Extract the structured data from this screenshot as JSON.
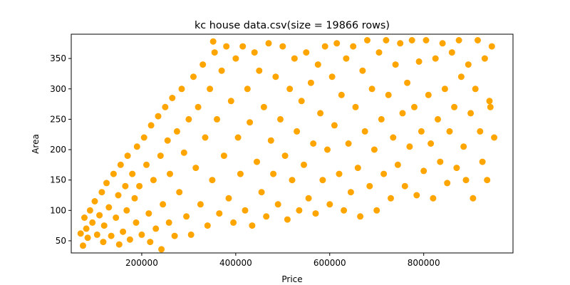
{
  "chart_data": {
    "type": "scatter",
    "title": "kc house data.csv(size = 19866 rows)",
    "xlabel": "Price",
    "ylabel": "Area",
    "xlim": [
      50000,
      990000
    ],
    "ylim": [
      30,
      390
    ],
    "xticks": [
      200000,
      400000,
      600000,
      800000
    ],
    "xtick_labels": [
      "200000",
      "400000",
      "600000",
      "800000"
    ],
    "yticks": [
      50,
      100,
      150,
      200,
      250,
      300,
      350
    ],
    "ytick_labels": [
      "50",
      "100",
      "150",
      "200",
      "250",
      "300",
      "350"
    ],
    "grid": false,
    "legend": "none",
    "marker_color": "#ffa500",
    "points": [
      [
        70000,
        62
      ],
      [
        75000,
        42
      ],
      [
        78000,
        88
      ],
      [
        82000,
        70
      ],
      [
        85000,
        55
      ],
      [
        90000,
        100
      ],
      [
        95000,
        80
      ],
      [
        100000,
        115
      ],
      [
        105000,
        60
      ],
      [
        110000,
        92
      ],
      [
        115000,
        130
      ],
      [
        118000,
        48
      ],
      [
        120000,
        75
      ],
      [
        125000,
        145
      ],
      [
        130000,
        105
      ],
      [
        135000,
        58
      ],
      [
        140000,
        160
      ],
      [
        145000,
        88
      ],
      [
        150000,
        125
      ],
      [
        152000,
        44
      ],
      [
        155000,
        175
      ],
      [
        160000,
        65
      ],
      [
        165000,
        140
      ],
      [
        168000,
        100
      ],
      [
        170000,
        190
      ],
      [
        175000,
        52
      ],
      [
        180000,
        160
      ],
      [
        185000,
        120
      ],
      [
        188000,
        80
      ],
      [
        190000,
        205
      ],
      [
        195000,
        140
      ],
      [
        200000,
        60
      ],
      [
        205000,
        220
      ],
      [
        210000,
        175
      ],
      [
        215000,
        95
      ],
      [
        218000,
        48
      ],
      [
        220000,
        240
      ],
      [
        225000,
        150
      ],
      [
        230000,
        70
      ],
      [
        235000,
        255
      ],
      [
        240000,
        190
      ],
      [
        242000,
        36
      ],
      [
        245000,
        110
      ],
      [
        250000,
        270
      ],
      [
        255000,
        215
      ],
      [
        258000,
        80
      ],
      [
        260000,
        160
      ],
      [
        265000,
        285
      ],
      [
        270000,
        58
      ],
      [
        275000,
        230
      ],
      [
        280000,
        130
      ],
      [
        285000,
        300
      ],
      [
        290000,
        195
      ],
      [
        295000,
        90
      ],
      [
        300000,
        250
      ],
      [
        305000,
        60
      ],
      [
        310000,
        320
      ],
      [
        315000,
        170
      ],
      [
        320000,
        270
      ],
      [
        325000,
        110
      ],
      [
        330000,
        340
      ],
      [
        335000,
        220
      ],
      [
        340000,
        75
      ],
      [
        345000,
        300
      ],
      [
        350000,
        150
      ],
      [
        352000,
        378
      ],
      [
        355000,
        360
      ],
      [
        360000,
        250
      ],
      [
        365000,
        95
      ],
      [
        370000,
        330
      ],
      [
        375000,
        190
      ],
      [
        380000,
        370
      ],
      [
        385000,
        120
      ],
      [
        390000,
        280
      ],
      [
        395000,
        80
      ],
      [
        400000,
        350
      ],
      [
        405000,
        220
      ],
      [
        410000,
        160
      ],
      [
        415000,
        370
      ],
      [
        420000,
        100
      ],
      [
        425000,
        300
      ],
      [
        430000,
        245
      ],
      [
        435000,
        75
      ],
      [
        440000,
        360
      ],
      [
        445000,
        180
      ],
      [
        450000,
        330
      ],
      [
        455000,
        130
      ],
      [
        460000,
        270
      ],
      [
        465000,
        90
      ],
      [
        470000,
        375
      ],
      [
        475000,
        215
      ],
      [
        480000,
        160
      ],
      [
        485000,
        320
      ],
      [
        490000,
        110
      ],
      [
        495000,
        250
      ],
      [
        500000,
        370
      ],
      [
        505000,
        190
      ],
      [
        510000,
        85
      ],
      [
        515000,
        300
      ],
      [
        520000,
        150
      ],
      [
        525000,
        350
      ],
      [
        530000,
        230
      ],
      [
        535000,
        100
      ],
      [
        540000,
        280
      ],
      [
        545000,
        175
      ],
      [
        550000,
        360
      ],
      [
        555000,
        120
      ],
      [
        560000,
        310
      ],
      [
        565000,
        210
      ],
      [
        570000,
        95
      ],
      [
        575000,
        340
      ],
      [
        580000,
        260
      ],
      [
        585000,
        150
      ],
      [
        590000,
        370
      ],
      [
        595000,
        200
      ],
      [
        600000,
        110
      ],
      [
        605000,
        320
      ],
      [
        610000,
        240
      ],
      [
        615000,
        375
      ],
      [
        620000,
        160
      ],
      [
        625000,
        290
      ],
      [
        630000,
        100
      ],
      [
        635000,
        350
      ],
      [
        640000,
        210
      ],
      [
        645000,
        130
      ],
      [
        650000,
        370
      ],
      [
        655000,
        270
      ],
      [
        660000,
        170
      ],
      [
        665000,
        90
      ],
      [
        670000,
        330
      ],
      [
        675000,
        230
      ],
      [
        680000,
        380
      ],
      [
        685000,
        140
      ],
      [
        690000,
        300
      ],
      [
        695000,
        200
      ],
      [
        700000,
        100
      ],
      [
        705000,
        360
      ],
      [
        710000,
        250
      ],
      [
        715000,
        160
      ],
      [
        720000,
        380
      ],
      [
        725000,
        290
      ],
      [
        730000,
        120
      ],
      [
        735000,
        220
      ],
      [
        740000,
        340
      ],
      [
        745000,
        175
      ],
      [
        750000,
        375
      ],
      [
        755000,
        260
      ],
      [
        760000,
        140
      ],
      [
        765000,
        310
      ],
      [
        770000,
        205
      ],
      [
        775000,
        380
      ],
      [
        780000,
        270
      ],
      [
        785000,
        125
      ],
      [
        790000,
        345
      ],
      [
        795000,
        230
      ],
      [
        800000,
        165
      ],
      [
        805000,
        380
      ],
      [
        810000,
        290
      ],
      [
        815000,
        210
      ],
      [
        820000,
        120
      ],
      [
        825000,
        350
      ],
      [
        830000,
        250
      ],
      [
        835000,
        180
      ],
      [
        840000,
        375
      ],
      [
        845000,
        300
      ],
      [
        850000,
        145
      ],
      [
        855000,
        230
      ],
      [
        860000,
        360
      ],
      [
        865000,
        270
      ],
      [
        870000,
        170
      ],
      [
        875000,
        380
      ],
      [
        880000,
        320
      ],
      [
        885000,
        205
      ],
      [
        890000,
        150
      ],
      [
        895000,
        340
      ],
      [
        900000,
        260
      ],
      [
        905000,
        120
      ],
      [
        910000,
        300
      ],
      [
        915000,
        380
      ],
      [
        920000,
        230
      ],
      [
        925000,
        180
      ],
      [
        930000,
        350
      ],
      [
        935000,
        150
      ],
      [
        940000,
        280
      ],
      [
        942000,
        270
      ],
      [
        945000,
        370
      ],
      [
        950000,
        220
      ]
    ]
  }
}
